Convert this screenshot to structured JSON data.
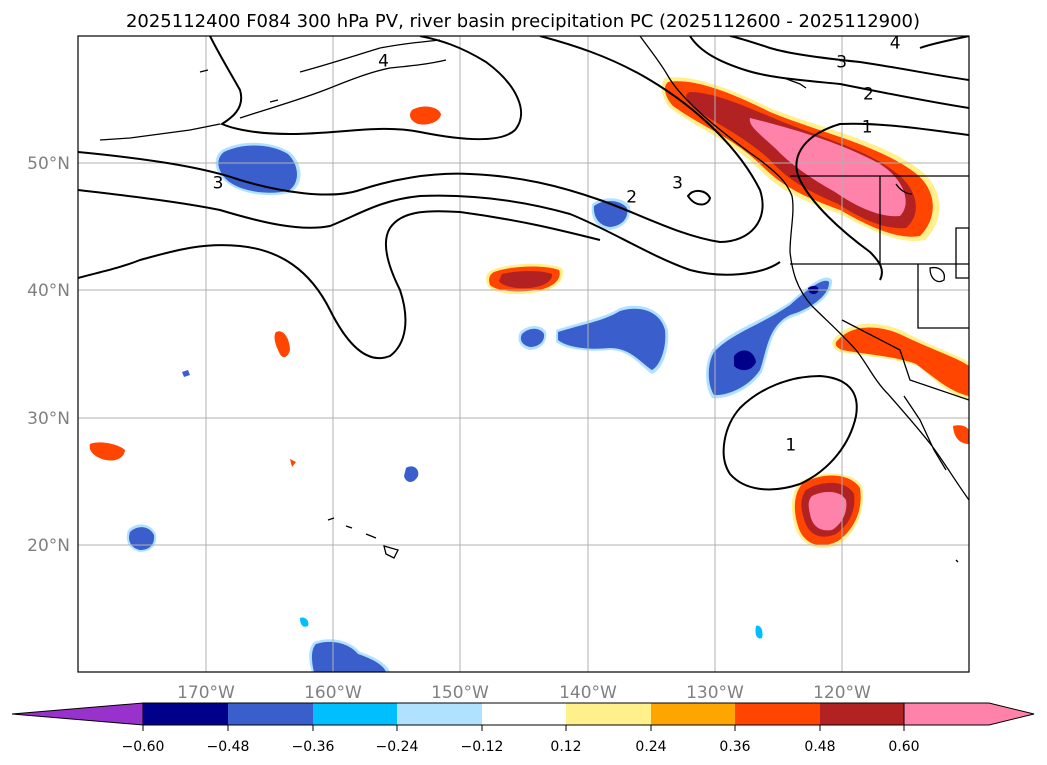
{
  "title": "2025112400 F084 300 hPa PV, river basin precipitation PC (2025112600 - 2025112900)",
  "map": {
    "lon_range": [
      -180,
      -110
    ],
    "lat_range": [
      10,
      60
    ],
    "lon_ticks": [
      {
        "value": -170,
        "label": "170°W"
      },
      {
        "value": -160,
        "label": "160°W"
      },
      {
        "value": -150,
        "label": "150°W"
      },
      {
        "value": -140,
        "label": "140°W"
      },
      {
        "value": -130,
        "label": "130°W"
      },
      {
        "value": -120,
        "label": "120°W"
      }
    ],
    "lat_ticks": [
      {
        "value": 20,
        "label": "20°N"
      },
      {
        "value": 30,
        "label": "30°N"
      },
      {
        "value": 40,
        "label": "40°N"
      },
      {
        "value": 50,
        "label": "50°N"
      }
    ],
    "contour_labels": [
      {
        "text": "1",
        "lon": -118.0,
        "lat": 52.8
      },
      {
        "text": "2",
        "lon": -117.9,
        "lat": 55.4
      },
      {
        "text": "3",
        "lon": -120.0,
        "lat": 57.9
      },
      {
        "text": "4",
        "lon": -115.8,
        "lat": 59.4
      },
      {
        "text": "4",
        "lon": -156.0,
        "lat": 58.0
      },
      {
        "text": "3",
        "lon": -169.0,
        "lat": 48.4
      },
      {
        "text": "2",
        "lon": -136.5,
        "lat": 47.3
      },
      {
        "text": "3",
        "lon": -132.9,
        "lat": 48.4
      },
      {
        "text": "1",
        "lon": -124.0,
        "lat": 27.8
      }
    ]
  },
  "colorbar": {
    "colors": [
      "#9932cc",
      "#00008b",
      "#3a5fcd",
      "#00bfff",
      "#b0e2ff",
      "#ffffff",
      "#fff08c",
      "#ffa500",
      "#ff4500",
      "#b22222",
      "#ff82ab",
      "#ff82ab"
    ],
    "labels": [
      "−0.60",
      "−0.48",
      "−0.36",
      "−0.24",
      "−0.12",
      "0.12",
      "0.24",
      "0.36",
      "0.48",
      "0.60"
    ]
  }
}
